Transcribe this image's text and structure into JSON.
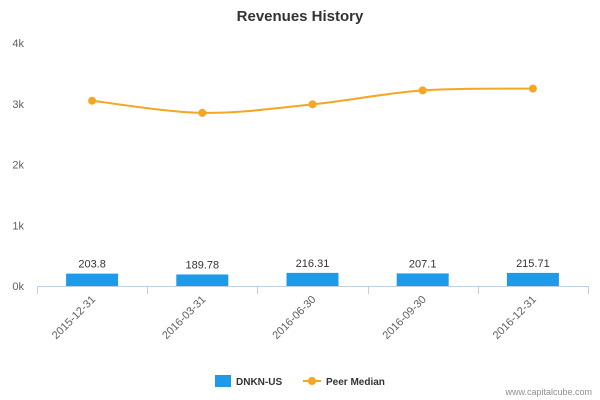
{
  "chart_data": {
    "type": "bar",
    "title": "Revenues History",
    "categories": [
      "2015-12-31",
      "2016-03-31",
      "2016-06-30",
      "2016-09-30",
      "2016-12-31"
    ],
    "series": [
      {
        "name": "DNKN-US",
        "type": "bar",
        "color": "#1e9be8",
        "values": [
          203.8,
          189.78,
          216.31,
          207.1,
          215.71
        ],
        "labels": [
          "203.8",
          "189.78",
          "216.31",
          "207.1",
          "215.71"
        ]
      },
      {
        "name": "Peer Median",
        "type": "line",
        "color": "#f5a623",
        "values": [
          3050,
          2850,
          2990,
          3220,
          3250
        ]
      }
    ],
    "ylim": [
      0,
      4000
    ],
    "yticks": [
      {
        "value": 0,
        "label": "0k"
      },
      {
        "value": 1000,
        "label": "1k"
      },
      {
        "value": 2000,
        "label": "2k"
      },
      {
        "value": 3000,
        "label": "3k"
      },
      {
        "value": 4000,
        "label": "4k"
      }
    ],
    "xlabel": "",
    "ylabel": "",
    "grid": false,
    "legend_position": "bottom"
  },
  "credit": "www.capitalcube.com"
}
